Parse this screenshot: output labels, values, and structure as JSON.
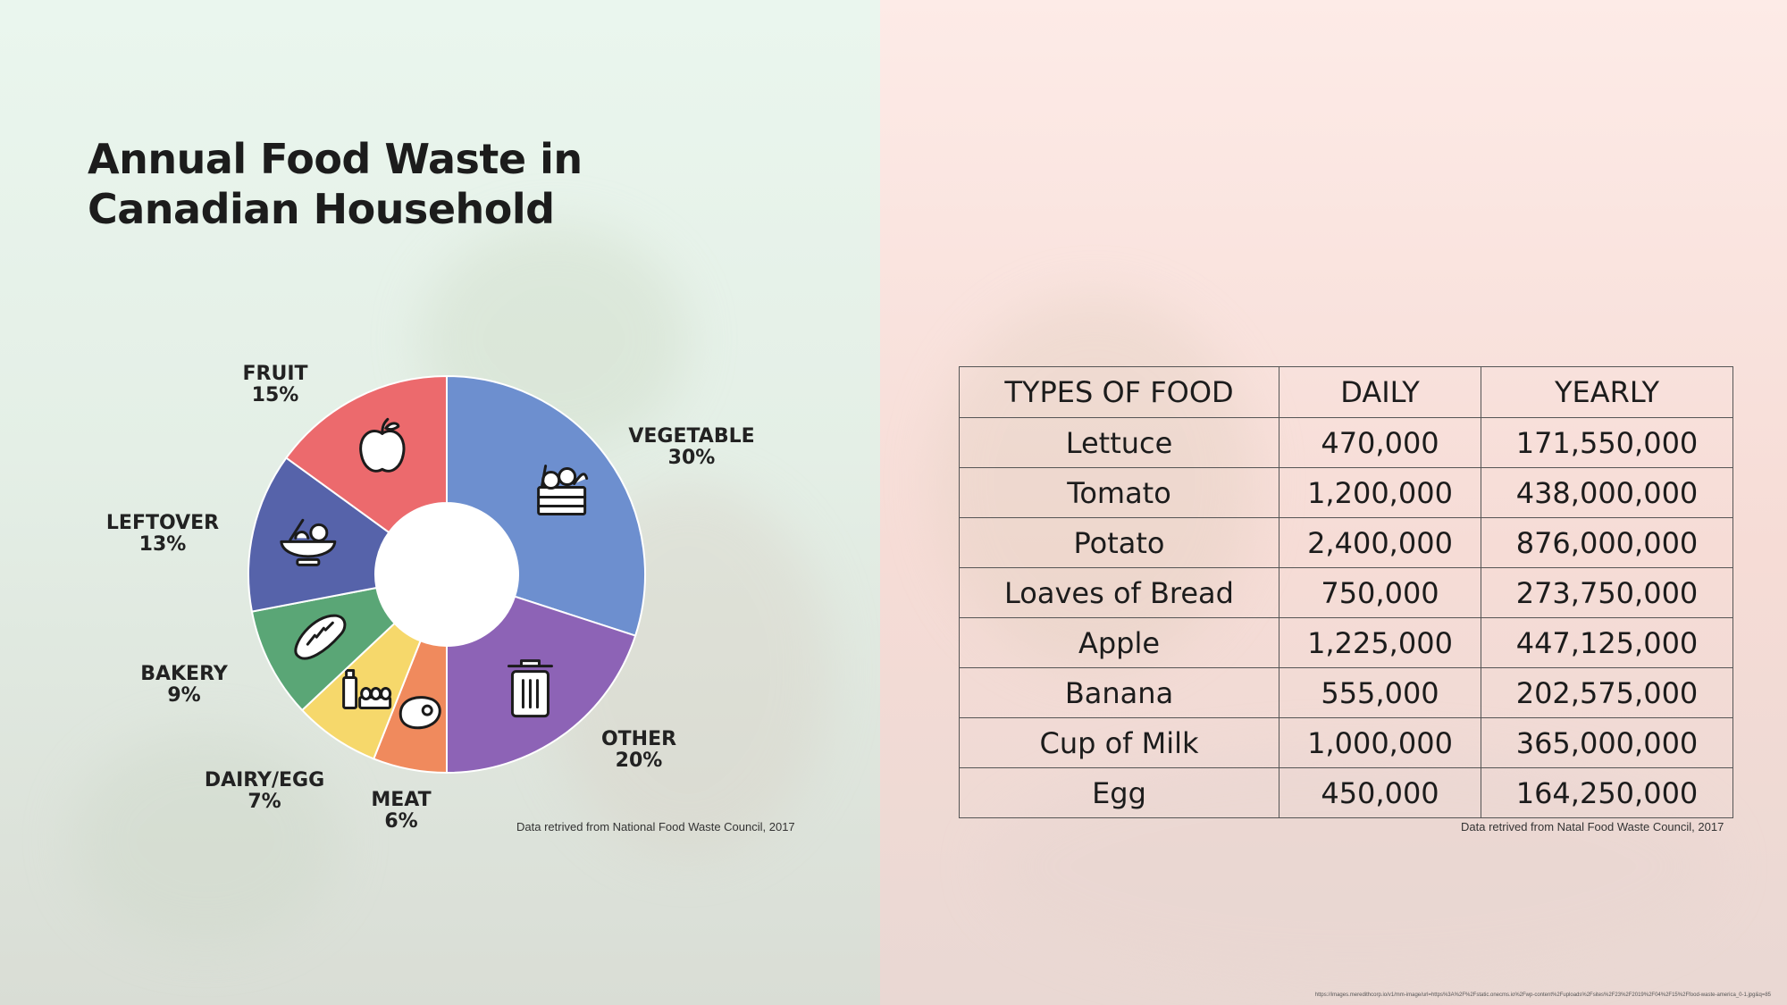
{
  "title": {
    "line1": "Annual Food Waste in",
    "line2": "Canadian Household"
  },
  "chart_data": {
    "type": "pie",
    "donut": true,
    "slices": [
      {
        "label": "VEGETABLE",
        "pct_label": "30%",
        "value": 30,
        "color": "#6d8fcf",
        "icon": "vegetable-crate-icon"
      },
      {
        "label": "OTHER",
        "pct_label": "20%",
        "value": 20,
        "color": "#8d63b6",
        "icon": "trash-can-icon"
      },
      {
        "label": "MEAT",
        "pct_label": "6%",
        "value": 6,
        "color": "#f08a5d",
        "icon": "steak-icon"
      },
      {
        "label": "DAIRY/EGG",
        "pct_label": "7%",
        "value": 7,
        "color": "#f6d86b",
        "icon": "milk-and-eggs-icon"
      },
      {
        "label": "BAKERY",
        "pct_label": "9%",
        "value": 9,
        "color": "#5aa676",
        "icon": "bread-icon"
      },
      {
        "label": "LEFTOVER",
        "pct_label": "13%",
        "value": 13,
        "color": "#5663aa",
        "icon": "salad-bowl-icon"
      },
      {
        "label": "FRUIT",
        "pct_label": "15%",
        "value": 15,
        "color": "#ec6a6d",
        "icon": "apple-icon"
      }
    ]
  },
  "chart_note": "Data retrived from National Food Waste Council, 2017",
  "table": {
    "headers": [
      "TYPES OF FOOD",
      "DAILY",
      "YEARLY"
    ],
    "rows": [
      [
        "Lettuce",
        "470,000",
        "171,550,000"
      ],
      [
        "Tomato",
        "1,200,000",
        "438,000,000"
      ],
      [
        "Potato",
        "2,400,000",
        "876,000,000"
      ],
      [
        "Loaves of Bread",
        "750,000",
        "273,750,000"
      ],
      [
        "Apple",
        "1,225,000",
        "447,125,000"
      ],
      [
        "Banana",
        "555,000",
        "202,575,000"
      ],
      [
        "Cup of Milk",
        "1,000,000",
        "365,000,000"
      ],
      [
        "Egg",
        "450,000",
        "164,250,000"
      ]
    ],
    "note": "Data retrived from Natal Food Waste Council, 2017"
  },
  "source_url": "https://images.meredithcorp.io/v1/mm-image/url=https%3A%2F%2Fstatic.onecms.io%2Fwp-content%2Fuploads%2Fsites%2F23%2F2019%2F04%2F15%2Ffood-waste-america_0-1.jpg&q=85"
}
